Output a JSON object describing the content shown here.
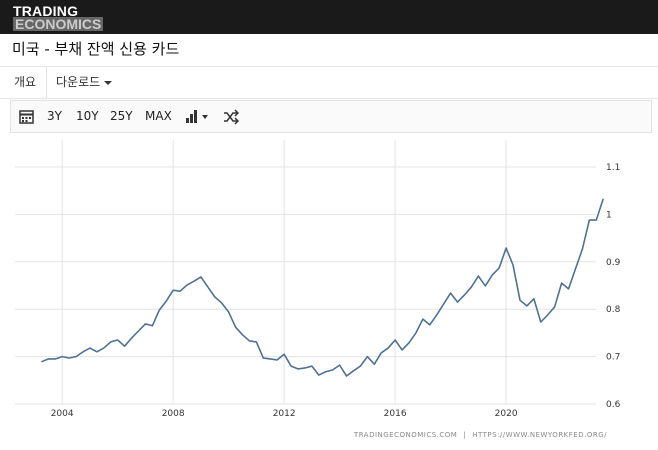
{
  "header": {
    "logo": [
      "TRADING",
      "ECONOMICS"
    ],
    "title": "미국 - 부채 잔액 신용 카드"
  },
  "tabs": [
    "개요",
    "다운로드"
  ],
  "toolbar": [
    "3Y",
    "10Y",
    "25Y",
    "MAX"
  ],
  "chart_data": {
    "type": "line",
    "color": "#4f7194",
    "grid": true,
    "xlim": [
      2002.3,
      2023.6
    ],
    "xticks": [
      2004,
      2008,
      2012,
      2016,
      2020
    ],
    "ylim": [
      0.6,
      1.1
    ],
    "yticks": [
      0.6,
      0.7,
      0.8,
      0.9,
      1,
      1.1
    ],
    "x": [
      2003.25,
      2003.5,
      2003.75,
      2004,
      2004.25,
      2004.5,
      2004.75,
      2005,
      2005.25,
      2005.5,
      2005.75,
      2006,
      2006.25,
      2006.5,
      2006.75,
      2007,
      2007.25,
      2007.5,
      2007.75,
      2008,
      2008.25,
      2008.5,
      2008.75,
      2009,
      2009.25,
      2009.5,
      2009.75,
      2010,
      2010.25,
      2010.5,
      2010.75,
      2011,
      2011.25,
      2011.5,
      2011.75,
      2012,
      2012.25,
      2012.5,
      2012.75,
      2013,
      2013.25,
      2013.5,
      2013.75,
      2014,
      2014.25,
      2014.5,
      2014.75,
      2015,
      2015.25,
      2015.5,
      2015.75,
      2016,
      2016.25,
      2016.5,
      2016.75,
      2017,
      2017.25,
      2017.5,
      2017.75,
      2018,
      2018.25,
      2018.5,
      2018.75,
      2019,
      2019.25,
      2019.5,
      2019.75,
      2020,
      2020.25,
      2020.5,
      2020.75,
      2021,
      2021.25,
      2021.5,
      2021.75,
      2022,
      2022.25,
      2022.5,
      2022.75,
      2023,
      2023.25,
      2023.5
    ],
    "values": [
      0.689,
      0.695,
      0.695,
      0.7,
      0.697,
      0.7,
      0.71,
      0.718,
      0.71,
      0.718,
      0.731,
      0.735,
      0.722,
      0.739,
      0.754,
      0.769,
      0.765,
      0.798,
      0.817,
      0.84,
      0.838,
      0.851,
      0.859,
      0.868,
      0.847,
      0.826,
      0.813,
      0.794,
      0.762,
      0.746,
      0.733,
      0.731,
      0.697,
      0.695,
      0.693,
      0.705,
      0.68,
      0.674,
      0.676,
      0.68,
      0.661,
      0.668,
      0.672,
      0.682,
      0.659,
      0.67,
      0.68,
      0.7,
      0.684,
      0.708,
      0.718,
      0.735,
      0.714,
      0.729,
      0.75,
      0.779,
      0.767,
      0.788,
      0.811,
      0.834,
      0.815,
      0.83,
      0.847,
      0.87,
      0.849,
      0.872,
      0.887,
      0.929,
      0.893,
      0.819,
      0.807,
      0.822,
      0.773,
      0.788,
      0.805,
      0.855,
      0.843,
      0.885,
      0.927,
      0.988,
      0.988,
      1.033
    ]
  },
  "source": [
    "TRADINGECONOMICS.COM",
    "|",
    "HTTPS://WWW.NEWYORKFED.ORG/"
  ]
}
